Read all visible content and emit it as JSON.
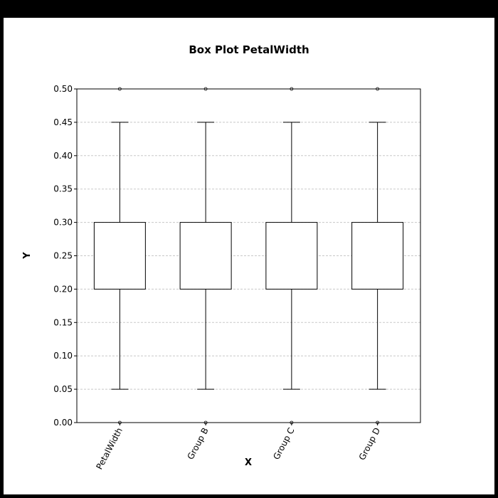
{
  "chart_data": {
    "type": "box",
    "title": "Box Plot PetalWidth",
    "xlabel": "X",
    "ylabel": "Y",
    "ylim": [
      0.0,
      0.5
    ],
    "yticks": [
      "0.00",
      "0.05",
      "0.10",
      "0.15",
      "0.20",
      "0.25",
      "0.30",
      "0.35",
      "0.40",
      "0.45",
      "0.50"
    ],
    "grid": true,
    "categories": [
      "PetalWidth",
      "Group B",
      "Group C",
      "Group D"
    ],
    "boxes": [
      {
        "whisker_low": 0.05,
        "q1": 0.2,
        "q3": 0.3,
        "whisker_high": 0.45,
        "outliers": [
          0.5,
          0.0
        ]
      },
      {
        "whisker_low": 0.05,
        "q1": 0.2,
        "q3": 0.3,
        "whisker_high": 0.45,
        "outliers": [
          0.5,
          0.0
        ]
      },
      {
        "whisker_low": 0.05,
        "q1": 0.2,
        "q3": 0.3,
        "whisker_high": 0.45,
        "outliers": [
          0.5,
          0.0
        ]
      },
      {
        "whisker_low": 0.05,
        "q1": 0.2,
        "q3": 0.3,
        "whisker_high": 0.45,
        "outliers": [
          0.5,
          0.0
        ]
      }
    ]
  }
}
